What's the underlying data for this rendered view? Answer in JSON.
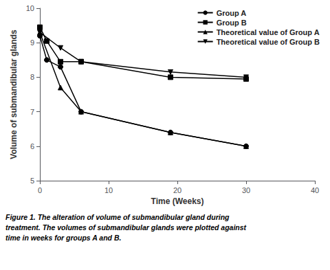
{
  "chart_data": {
    "type": "line",
    "x_label": "Time (Weeks)",
    "y_label": "Volume of submandibular glands",
    "series": [
      {
        "name": "Group A",
        "color": "#000000",
        "marker": "circle",
        "x": [
          0,
          1,
          3,
          6,
          19,
          30
        ],
        "values": [
          9.2,
          8.5,
          8.3,
          7.0,
          6.4,
          6.0
        ]
      },
      {
        "name": "Group B",
        "color": "#000000",
        "marker": "square",
        "x": [
          0,
          1,
          3,
          6,
          19,
          30
        ],
        "values": [
          9.45,
          9.05,
          8.45,
          8.45,
          8.0,
          7.95
        ]
      },
      {
        "name": "Theoretical value of Group A",
        "color": "#000000",
        "marker": "triangle-up",
        "x": [
          0,
          3,
          6,
          19,
          30
        ],
        "values": [
          9.3,
          7.7,
          7.0,
          6.4,
          6.0
        ]
      },
      {
        "name": "Theoretical value of Group B",
        "color": "#000000",
        "marker": "triangle-down",
        "x": [
          0,
          3,
          6,
          19,
          30
        ],
        "values": [
          9.3,
          8.85,
          8.45,
          8.15,
          8.0
        ]
      }
    ],
    "xlim": [
      0,
      40
    ],
    "ylim": [
      5,
      10
    ],
    "xticks": [
      0,
      10,
      20,
      30,
      40
    ],
    "yticks": [
      5,
      6,
      7,
      8,
      9,
      10
    ],
    "grid": false,
    "legend": "upper right",
    "annotations": [
      {
        "text": "Figure 1."
      },
      {
        "text": "The alteration of volume of submandibular gland during\ntreatment. The volumes of submandibular glands were plotted against\ntime in weeks for groups A and B."
      }
    ]
  }
}
